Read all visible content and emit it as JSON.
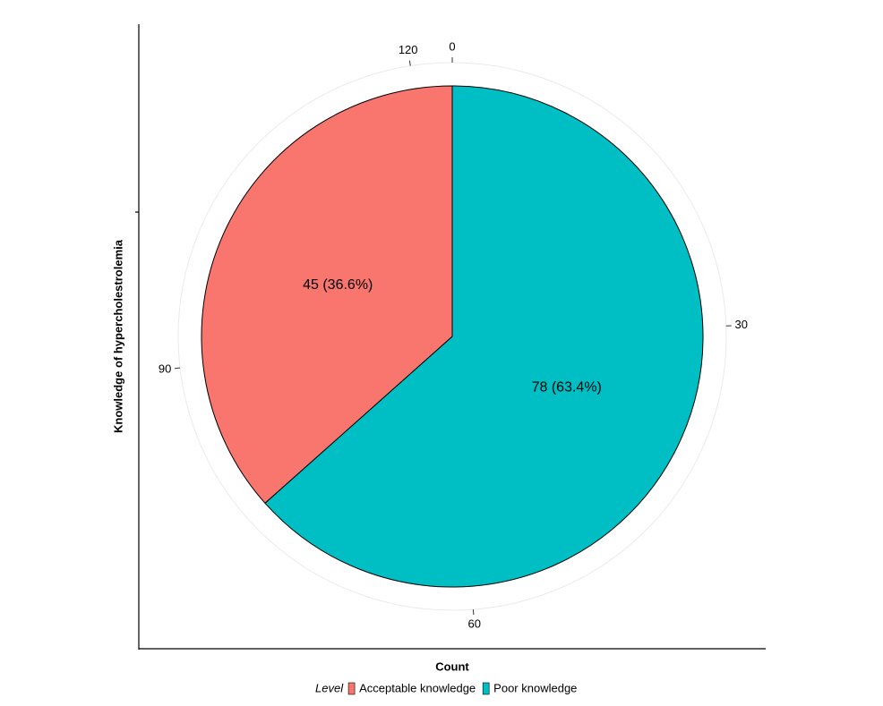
{
  "chart_data": {
    "type": "pie",
    "x_label": "Count",
    "y_label": "Knowledge of hypercholestrolemia",
    "legend_title": "Level",
    "categories": [
      "Acceptable knowledge",
      "Poor knowledge"
    ],
    "values": [
      45,
      78
    ],
    "value_labels": [
      "45 (36.6%)",
      "78 (63.4%)"
    ],
    "colors": [
      "#F8766D",
      "#00BFC4"
    ],
    "theta_lim": [
      0,
      123
    ],
    "theta_ticks": [
      0,
      30,
      60,
      90,
      120
    ],
    "grid": true,
    "legend_position": "bottom"
  }
}
